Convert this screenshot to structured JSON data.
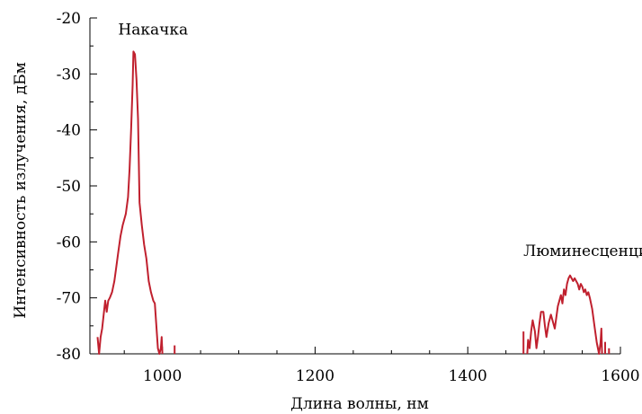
{
  "chart_data": {
    "type": "line",
    "xlabel": "Длина волны, нм",
    "ylabel": "Интенсивность излучения, дБм",
    "xlim": [
      905,
      1600
    ],
    "ylim": [
      -80,
      -20
    ],
    "x_ticks": [
      1000,
      1200,
      1400,
      1600
    ],
    "y_ticks": [
      -20,
      -30,
      -40,
      -50,
      -60,
      -70,
      -80
    ],
    "x_tick_labels": [
      "1000",
      "1200",
      "1400",
      "1600"
    ],
    "y_tick_labels": [
      "-20",
      "-30",
      "-40",
      "-50",
      "-60",
      "-70",
      "-80"
    ],
    "grid": false,
    "line_color": "#c0202e",
    "annotations": [
      {
        "text": "Накачка",
        "x": 942,
        "y": -23
      },
      {
        "text": "Люминесценция",
        "x": 1473,
        "y": -62.5
      }
    ],
    "series": [
      {
        "segments": [
          [
            [
              915,
              -77
            ],
            [
              917,
              -80
            ],
            [
              919,
              -77
            ],
            [
              921,
              -75.5
            ],
            [
              923,
              -73
            ],
            [
              925,
              -70.5
            ],
            [
              927,
              -72.5
            ],
            [
              929,
              -70.5
            ],
            [
              931,
              -70
            ],
            [
              934,
              -69
            ],
            [
              937,
              -67
            ],
            [
              939,
              -65
            ],
            [
              942,
              -62
            ],
            [
              945,
              -59
            ],
            [
              948,
              -57
            ],
            [
              952,
              -55
            ],
            [
              955,
              -52
            ],
            [
              957,
              -47
            ],
            [
              959,
              -40
            ],
            [
              961,
              -32
            ],
            [
              962,
              -26
            ],
            [
              964,
              -26.5
            ],
            [
              966,
              -31
            ],
            [
              968,
              -38
            ],
            [
              970,
              -53
            ],
            [
              973,
              -57
            ],
            [
              976,
              -60.5
            ],
            [
              979,
              -63
            ],
            [
              982,
              -67
            ],
            [
              985,
              -69
            ],
            [
              988,
              -70.5
            ],
            [
              990,
              -71
            ],
            [
              992,
              -75
            ],
            [
              994,
              -79
            ],
            [
              996,
              -80
            ],
            [
              998,
              -79
            ],
            [
              999,
              -77
            ],
            [
              1000,
              -80
            ]
          ],
          [
            [
              1016,
              -80
            ],
            [
              1016,
              -78.5
            ]
          ],
          [
            [
              1473,
              -80
            ],
            [
              1473,
              -76
            ]
          ],
          [
            [
              1478,
              -80
            ],
            [
              1479,
              -77.5
            ],
            [
              1481,
              -79
            ],
            [
              1483,
              -76
            ],
            [
              1485,
              -74
            ],
            [
              1488,
              -76
            ],
            [
              1490,
              -79
            ],
            [
              1492,
              -77
            ],
            [
              1494,
              -74.5
            ],
            [
              1496,
              -72.5
            ],
            [
              1499,
              -72.5
            ],
            [
              1501,
              -75
            ],
            [
              1503,
              -77
            ],
            [
              1506,
              -74.5
            ],
            [
              1509,
              -73
            ],
            [
              1512,
              -74.5
            ],
            [
              1514,
              -75.5
            ],
            [
              1516,
              -73.5
            ],
            [
              1518,
              -71.5
            ],
            [
              1520,
              -70.5
            ],
            [
              1522,
              -69.5
            ],
            [
              1524,
              -71
            ],
            [
              1526,
              -68.5
            ],
            [
              1528,
              -69.5
            ],
            [
              1530,
              -67.5
            ],
            [
              1532,
              -66.5
            ],
            [
              1534,
              -66
            ],
            [
              1536,
              -66.5
            ],
            [
              1538,
              -67
            ],
            [
              1540,
              -66.5
            ],
            [
              1542,
              -67
            ],
            [
              1544,
              -67.5
            ],
            [
              1546,
              -68.5
            ],
            [
              1548,
              -67.5
            ],
            [
              1550,
              -68
            ],
            [
              1552,
              -69
            ],
            [
              1554,
              -68.5
            ],
            [
              1556,
              -69.5
            ],
            [
              1558,
              -69
            ],
            [
              1560,
              -70
            ],
            [
              1563,
              -72
            ],
            [
              1566,
              -75
            ],
            [
              1569,
              -78
            ],
            [
              1572,
              -80
            ],
            [
              1574,
              -78
            ],
            [
              1575,
              -75.5
            ],
            [
              1576,
              -80
            ]
          ],
          [
            [
              1580,
              -80
            ],
            [
              1580,
              -78
            ],
            [
              1580,
              -80
            ]
          ],
          [
            [
              1585,
              -80
            ],
            [
              1585,
              -79
            ]
          ]
        ]
      }
    ]
  }
}
